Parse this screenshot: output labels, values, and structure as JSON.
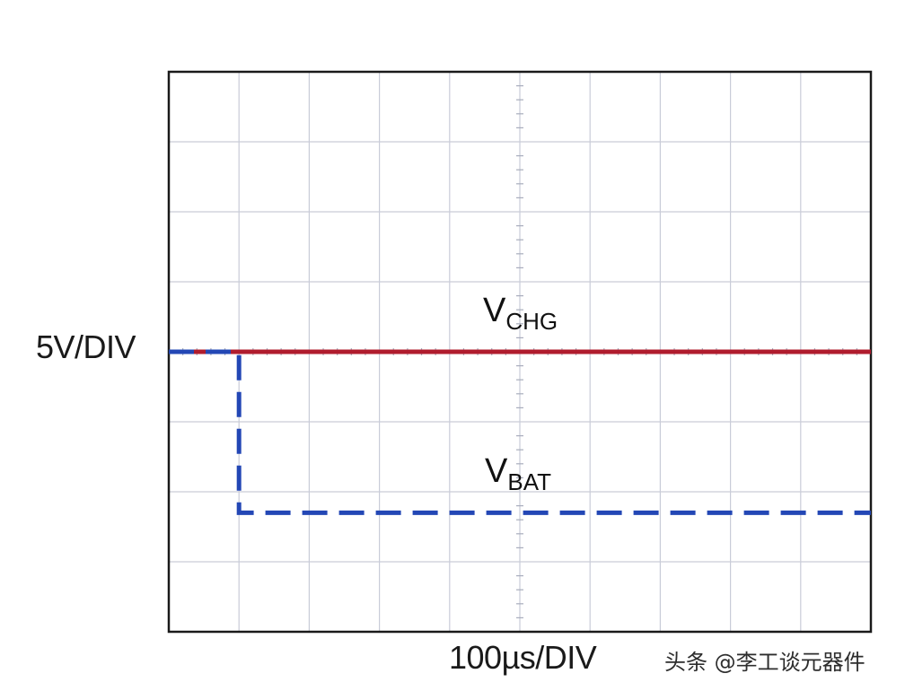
{
  "chart_data": {
    "type": "line",
    "x_scale_label": "100µs/DIV",
    "y_scale_label": "5V/DIV",
    "x_divisions": 10,
    "y_divisions": 8,
    "grid": true,
    "x_range_div": [
      0,
      10
    ],
    "y_range_div": [
      -4,
      4
    ],
    "series": [
      {
        "name_main": "V",
        "name_sub": "CHG",
        "color": "#b01c2e",
        "style": "solid",
        "x_div": [
          0,
          10
        ],
        "y_div": [
          0,
          0
        ]
      },
      {
        "name_main": "V",
        "name_sub": "BAT",
        "color": "#2347b5",
        "style": "dashed",
        "x_div": [
          0,
          0.55,
          1.0,
          1.0,
          10
        ],
        "y_div": [
          0,
          0,
          0,
          -2.3,
          -2.3
        ]
      }
    ]
  },
  "watermark": "头条 @李工谈元器件"
}
